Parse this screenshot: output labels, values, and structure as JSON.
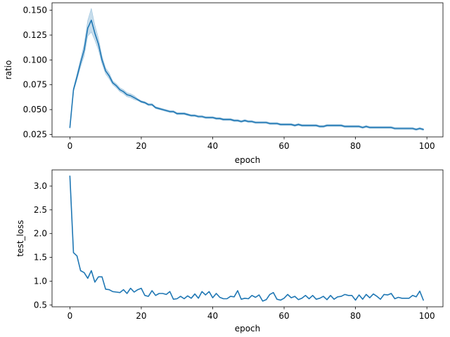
{
  "chart_data": [
    {
      "type": "line",
      "xlabel": "epoch",
      "ylabel": "ratio",
      "xlim": [
        -5,
        104.5
      ],
      "ylim": [
        0.0225,
        0.1575
      ],
      "xticks": [
        0,
        20,
        40,
        60,
        80,
        100
      ],
      "xtick_labels": [
        "0",
        "20",
        "40",
        "60",
        "80",
        "100"
      ],
      "yticks": [
        0.025,
        0.05,
        0.075,
        0.1,
        0.125,
        0.15
      ],
      "ytick_labels": [
        "0.025",
        "0.050",
        "0.075",
        "0.100",
        "0.125",
        "0.150"
      ],
      "grid": false,
      "line_color": "#1f77b4",
      "band_color": "#1f77b4",
      "band_opacity": 0.25,
      "series": [
        {
          "x": [
            0,
            1,
            2,
            3,
            4,
            5,
            6,
            7,
            8,
            9,
            10,
            11,
            12,
            13,
            14,
            15,
            16,
            17,
            18,
            19,
            20,
            21,
            22,
            23,
            24,
            25,
            26,
            27,
            28,
            29,
            30,
            31,
            32,
            33,
            34,
            35,
            36,
            37,
            38,
            39,
            40,
            41,
            42,
            43,
            44,
            45,
            46,
            47,
            48,
            49,
            50,
            51,
            52,
            53,
            54,
            55,
            56,
            57,
            58,
            59,
            60,
            61,
            62,
            63,
            64,
            65,
            66,
            67,
            68,
            69,
            70,
            71,
            72,
            73,
            74,
            75,
            76,
            77,
            78,
            79,
            80,
            81,
            82,
            83,
            84,
            85,
            86,
            87,
            88,
            89,
            90,
            91,
            92,
            93,
            94,
            95,
            96,
            97,
            98,
            99
          ],
          "y": [
            0.032,
            0.07,
            0.083,
            0.097,
            0.11,
            0.132,
            0.14,
            0.127,
            0.116,
            0.1,
            0.089,
            0.084,
            0.077,
            0.074,
            0.07,
            0.068,
            0.065,
            0.064,
            0.062,
            0.06,
            0.058,
            0.057,
            0.055,
            0.055,
            0.052,
            0.051,
            0.05,
            0.049,
            0.048,
            0.048,
            0.046,
            0.046,
            0.046,
            0.045,
            0.044,
            0.044,
            0.043,
            0.043,
            0.042,
            0.042,
            0.042,
            0.041,
            0.041,
            0.04,
            0.04,
            0.04,
            0.039,
            0.039,
            0.038,
            0.039,
            0.038,
            0.038,
            0.037,
            0.037,
            0.037,
            0.037,
            0.036,
            0.036,
            0.036,
            0.035,
            0.035,
            0.035,
            0.035,
            0.034,
            0.035,
            0.034,
            0.034,
            0.034,
            0.034,
            0.034,
            0.033,
            0.033,
            0.034,
            0.034,
            0.034,
            0.034,
            0.034,
            0.033,
            0.033,
            0.033,
            0.033,
            0.033,
            0.032,
            0.033,
            0.032,
            0.032,
            0.032,
            0.032,
            0.032,
            0.032,
            0.032,
            0.031,
            0.031,
            0.031,
            0.031,
            0.031,
            0.031,
            0.03,
            0.031,
            0.03
          ],
          "y_lower": [
            0.031,
            0.068,
            0.08,
            0.093,
            0.104,
            0.124,
            0.128,
            0.12,
            0.11,
            0.096,
            0.086,
            0.081,
            0.075,
            0.072,
            0.068,
            0.066,
            0.063,
            0.062,
            0.06,
            0.059,
            0.057,
            0.056,
            0.054,
            0.054,
            0.051,
            0.05,
            0.049,
            0.048,
            0.047,
            0.047,
            0.045,
            0.045,
            0.045,
            0.044,
            0.043,
            0.043,
            0.042,
            0.042,
            0.041,
            0.041,
            0.041,
            0.04,
            0.04,
            0.039,
            0.039,
            0.039,
            0.038,
            0.038,
            0.037,
            0.038,
            0.037,
            0.037,
            0.036,
            0.036,
            0.036,
            0.036,
            0.035,
            0.035,
            0.035,
            0.034,
            0.034,
            0.034,
            0.034,
            0.033,
            0.034,
            0.033,
            0.033,
            0.033,
            0.033,
            0.033,
            0.032,
            0.032,
            0.033,
            0.033,
            0.033,
            0.033,
            0.033,
            0.032,
            0.032,
            0.032,
            0.032,
            0.032,
            0.031,
            0.032,
            0.031,
            0.031,
            0.031,
            0.031,
            0.031,
            0.031,
            0.031,
            0.03,
            0.03,
            0.03,
            0.03,
            0.03,
            0.03,
            0.029,
            0.03,
            0.029
          ],
          "y_upper": [
            0.033,
            0.072,
            0.086,
            0.101,
            0.116,
            0.14,
            0.152,
            0.135,
            0.122,
            0.104,
            0.092,
            0.087,
            0.079,
            0.076,
            0.072,
            0.07,
            0.067,
            0.066,
            0.064,
            0.061,
            0.059,
            0.058,
            0.056,
            0.056,
            0.053,
            0.052,
            0.051,
            0.05,
            0.049,
            0.049,
            0.047,
            0.047,
            0.047,
            0.046,
            0.045,
            0.045,
            0.044,
            0.044,
            0.043,
            0.043,
            0.043,
            0.042,
            0.042,
            0.041,
            0.041,
            0.041,
            0.04,
            0.04,
            0.039,
            0.04,
            0.039,
            0.039,
            0.038,
            0.038,
            0.038,
            0.038,
            0.037,
            0.037,
            0.037,
            0.036,
            0.036,
            0.036,
            0.036,
            0.035,
            0.036,
            0.035,
            0.035,
            0.035,
            0.035,
            0.035,
            0.034,
            0.034,
            0.035,
            0.035,
            0.035,
            0.035,
            0.035,
            0.034,
            0.034,
            0.034,
            0.034,
            0.034,
            0.033,
            0.034,
            0.033,
            0.033,
            0.033,
            0.033,
            0.033,
            0.033,
            0.033,
            0.032,
            0.032,
            0.032,
            0.032,
            0.032,
            0.032,
            0.031,
            0.032,
            0.031
          ]
        }
      ]
    },
    {
      "type": "line",
      "xlabel": "epoch",
      "ylabel": "test_loss",
      "xlim": [
        -5,
        104.5
      ],
      "ylim": [
        0.46,
        3.34
      ],
      "xticks": [
        0,
        20,
        40,
        60,
        80,
        100
      ],
      "xtick_labels": [
        "0",
        "20",
        "40",
        "60",
        "80",
        "100"
      ],
      "yticks": [
        0.5,
        1.0,
        1.5,
        2.0,
        2.5,
        3.0
      ],
      "ytick_labels": [
        "0.5",
        "1.0",
        "1.5",
        "2.0",
        "2.5",
        "3.0"
      ],
      "grid": false,
      "line_color": "#1f77b4",
      "series": [
        {
          "x": [
            0,
            1,
            2,
            3,
            4,
            5,
            6,
            7,
            8,
            9,
            10,
            11,
            12,
            13,
            14,
            15,
            16,
            17,
            18,
            19,
            20,
            21,
            22,
            23,
            24,
            25,
            26,
            27,
            28,
            29,
            30,
            31,
            32,
            33,
            34,
            35,
            36,
            37,
            38,
            39,
            40,
            41,
            42,
            43,
            44,
            45,
            46,
            47,
            48,
            49,
            50,
            51,
            52,
            53,
            54,
            55,
            56,
            57,
            58,
            59,
            60,
            61,
            62,
            63,
            64,
            65,
            66,
            67,
            68,
            69,
            70,
            71,
            72,
            73,
            74,
            75,
            76,
            77,
            78,
            79,
            80,
            81,
            82,
            83,
            84,
            85,
            86,
            87,
            88,
            89,
            90,
            91,
            92,
            93,
            94,
            95,
            96,
            97,
            98,
            99
          ],
          "y": [
            3.21,
            1.6,
            1.53,
            1.22,
            1.18,
            1.06,
            1.22,
            0.98,
            1.09,
            1.09,
            0.83,
            0.82,
            0.78,
            0.77,
            0.76,
            0.82,
            0.74,
            0.85,
            0.77,
            0.82,
            0.85,
            0.7,
            0.68,
            0.8,
            0.7,
            0.74,
            0.74,
            0.72,
            0.78,
            0.62,
            0.63,
            0.68,
            0.63,
            0.69,
            0.64,
            0.73,
            0.64,
            0.78,
            0.71,
            0.78,
            0.65,
            0.74,
            0.66,
            0.63,
            0.63,
            0.68,
            0.67,
            0.8,
            0.62,
            0.64,
            0.63,
            0.7,
            0.66,
            0.71,
            0.58,
            0.61,
            0.72,
            0.76,
            0.62,
            0.6,
            0.64,
            0.72,
            0.65,
            0.68,
            0.61,
            0.64,
            0.7,
            0.63,
            0.7,
            0.62,
            0.64,
            0.68,
            0.61,
            0.7,
            0.62,
            0.67,
            0.68,
            0.72,
            0.7,
            0.7,
            0.6,
            0.71,
            0.62,
            0.72,
            0.65,
            0.73,
            0.68,
            0.62,
            0.72,
            0.71,
            0.74,
            0.63,
            0.66,
            0.64,
            0.64,
            0.64,
            0.7,
            0.67,
            0.79,
            0.6
          ]
        }
      ]
    }
  ]
}
